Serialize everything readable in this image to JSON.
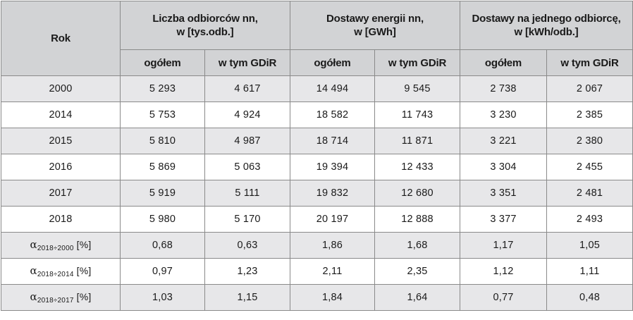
{
  "header": {
    "rok": "Rok",
    "group1": [
      "Liczba odbiorców nn,",
      "w [tys.odb.]"
    ],
    "group2": [
      "Dostawy energii nn,",
      "w [GWh]"
    ],
    "group3": [
      "Dostawy na jednego odbiorcę,",
      "w [kWh/odb.]"
    ],
    "subcols": [
      "ogółem",
      "w tym GDiR",
      "ogółem",
      "w tym GDiR",
      "ogółem",
      "w tym GDiR"
    ]
  },
  "rows": [
    {
      "year": "2000",
      "values": [
        "5 293",
        "4 617",
        "14 494",
        "9 545",
        "2 738",
        "2 067"
      ]
    },
    {
      "year": "2014",
      "values": [
        "5 753",
        "4 924",
        "18 582",
        "11 743",
        "3 230",
        "2 385"
      ]
    },
    {
      "year": "2015",
      "values": [
        "5 810",
        "4 987",
        "18 714",
        "11 871",
        "3 221",
        "2 380"
      ]
    },
    {
      "year": "2016",
      "values": [
        "5 869",
        "5 063",
        "19 394",
        "12 433",
        "3 304",
        "2 455"
      ]
    },
    {
      "year": "2017",
      "values": [
        "5 919",
        "5 111",
        "19 832",
        "12 680",
        "3 351",
        "2 481"
      ]
    },
    {
      "year": "2018",
      "values": [
        "5 980",
        "5 170",
        "20 197",
        "12 888",
        "3 377",
        "2 493"
      ]
    }
  ],
  "alpha_rows": [
    {
      "symbol": "α",
      "sub": "2018÷2000",
      "unit": " [%]",
      "values": [
        "0,68",
        "0,63",
        "1,86",
        "1,68",
        "1,17",
        "1,05"
      ]
    },
    {
      "symbol": "α",
      "sub": "2018÷2014",
      "unit": " [%]",
      "values": [
        "0,97",
        "1,23",
        "2,11",
        "2,35",
        "1,12",
        "1,11"
      ]
    },
    {
      "symbol": "α",
      "sub": "2018÷2017",
      "unit": " [%]",
      "values": [
        "1,03",
        "1,15",
        "1,84",
        "1,64",
        "0,77",
        "0,48"
      ]
    }
  ]
}
